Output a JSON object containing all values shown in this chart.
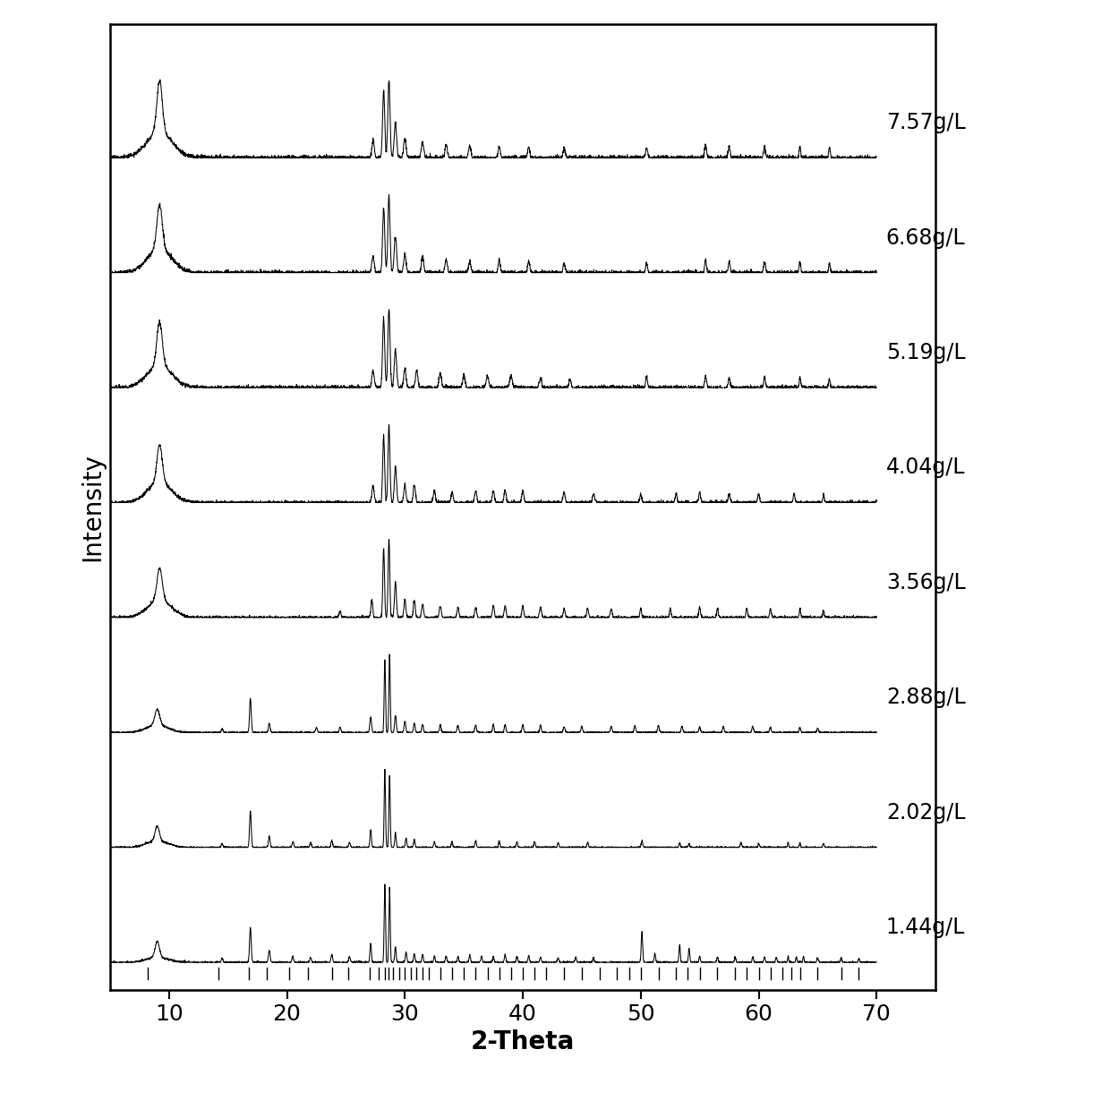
{
  "labels": [
    "1.44g/L",
    "2.02g/L",
    "2.88g/L",
    "3.56g/L",
    "4.04g/L",
    "5.19g/L",
    "6.68g/L",
    "7.57g/L"
  ],
  "x_min": 5,
  "x_max": 70,
  "xlabel": "2-Theta",
  "ylabel": "Intensity",
  "xlabel_fontsize": 20,
  "ylabel_fontsize": 20,
  "tick_fontsize": 18,
  "label_fontsize": 17,
  "x_ticks": [
    10,
    20,
    30,
    40,
    50,
    60,
    70
  ],
  "background_color": "#ffffff",
  "line_color": "#000000",
  "ref_ticks": [
    8.2,
    14.2,
    16.8,
    18.3,
    20.2,
    21.8,
    23.8,
    25.2,
    27.0,
    27.8,
    28.3,
    28.6,
    29.0,
    29.5,
    30.0,
    30.5,
    31.0,
    31.5,
    32.0,
    33.0,
    34.0,
    35.0,
    36.0,
    37.0,
    38.0,
    39.0,
    40.0,
    41.0,
    42.0,
    43.5,
    45.0,
    46.5,
    48.0,
    49.0,
    50.0,
    51.5,
    53.0,
    54.0,
    55.0,
    56.5,
    58.0,
    59.0,
    60.0,
    61.0,
    62.0,
    62.8,
    63.5,
    65.0,
    67.0,
    68.5
  ]
}
